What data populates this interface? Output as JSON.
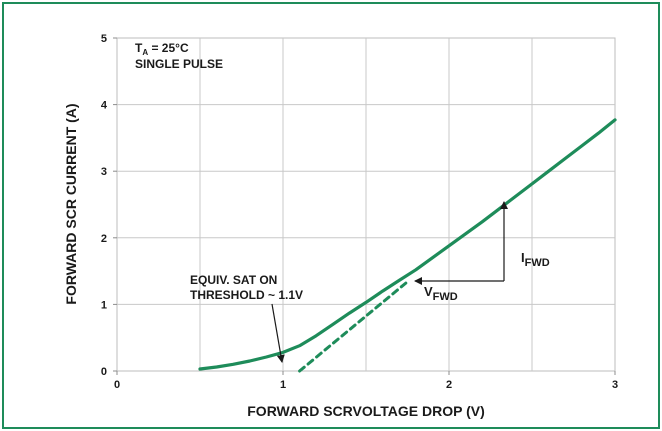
{
  "chart_data": {
    "type": "line",
    "xlabel": "FORWARD SCRVOLTAGE DROP (V)",
    "ylabel": "FORWARD SCR CURRENT (A)",
    "xlim": [
      0,
      3
    ],
    "ylim": [
      0,
      5
    ],
    "x_ticks": [
      "0",
      "1",
      "2",
      "3"
    ],
    "y_ticks": [
      "0",
      "1",
      "2",
      "3",
      "4",
      "5"
    ],
    "grid": true,
    "conditions": {
      "ta_main": "T",
      "ta_sub": "A",
      "ta_rest": " = 25°C",
      "pulse": "SINGLE PULSE"
    },
    "series": [
      {
        "style": "solid",
        "color": "#1e8c5a",
        "x": [
          0.5,
          0.6,
          0.7,
          0.8,
          0.9,
          1.0,
          1.1,
          1.2,
          1.3,
          1.4,
          1.5,
          1.6,
          1.7,
          1.8,
          1.9,
          2.0,
          2.1,
          2.2,
          2.3,
          2.4,
          2.5,
          2.6,
          2.7,
          2.8,
          2.9,
          3.0
        ],
        "y": [
          0.03,
          0.06,
          0.1,
          0.15,
          0.21,
          0.28,
          0.38,
          0.53,
          0.7,
          0.87,
          1.03,
          1.2,
          1.36,
          1.52,
          1.7,
          1.88,
          2.06,
          2.24,
          2.43,
          2.62,
          2.81,
          3.0,
          3.19,
          3.38,
          3.57,
          3.77
        ]
      },
      {
        "style": "dashed",
        "color": "#1e8c5a",
        "x": [
          1.1,
          1.74
        ],
        "y": [
          0.0,
          1.32
        ]
      }
    ],
    "annotations": {
      "equiv_line1": "EQUIV. SAT ON",
      "equiv_line2": "THRESHOLD ~ 1.1V",
      "vfwd_main": "V",
      "vfwd_sub": "FWD",
      "ifwd_main": "I",
      "ifwd_sub": "FWD"
    }
  }
}
